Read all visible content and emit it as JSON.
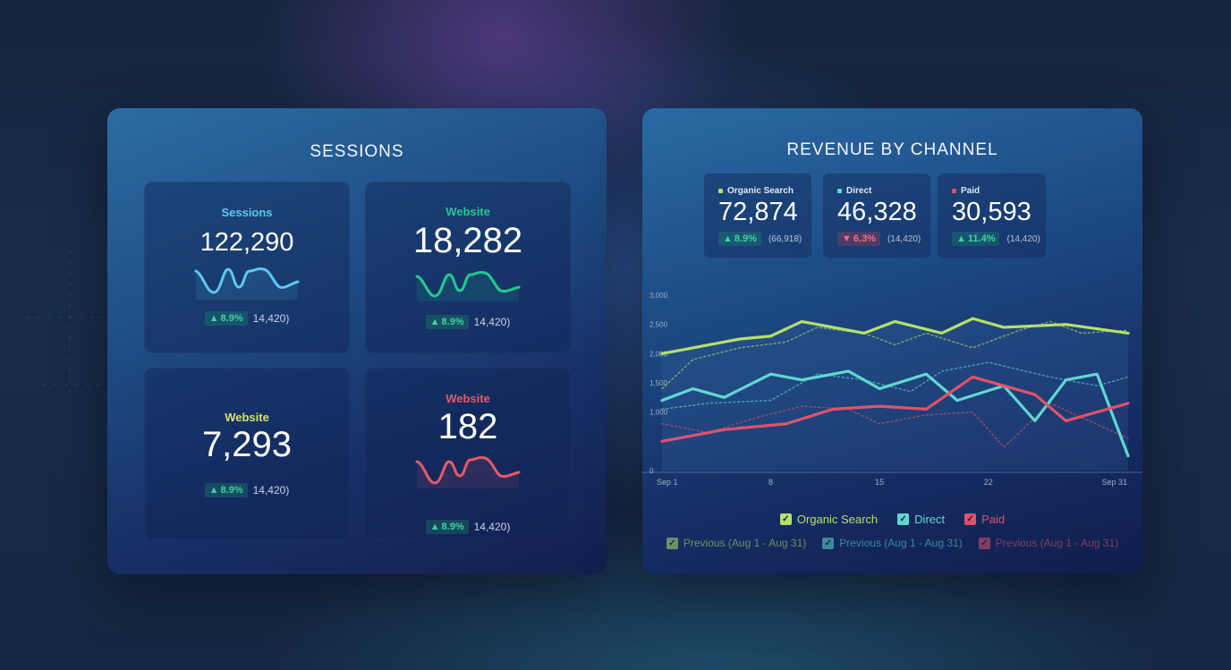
{
  "sessions_panel": {
    "title": "SESSIONS",
    "cards": [
      {
        "label": "Sessions",
        "value": "122,290",
        "delta": "8.9%",
        "direction": "up",
        "previous": "14,420)",
        "color": "#5ec8f0"
      },
      {
        "label": "Website",
        "value": "18,282",
        "delta": "8.9%",
        "direction": "up",
        "previous": "14,420)",
        "color": "#22c98f"
      },
      {
        "label": "Website",
        "value": "7,293",
        "delta": "8.9%",
        "direction": "up",
        "previous": "14,420)",
        "color": "#d6e36a"
      },
      {
        "label": "Website",
        "value": "182",
        "delta": "8.9%",
        "direction": "up",
        "previous": "14,420)",
        "color": "#e45a6a"
      }
    ]
  },
  "revenue_panel": {
    "title": "REVENUE BY CHANNEL",
    "kpis": [
      {
        "label": "Organic Search",
        "value": "72,874",
        "delta": "8.9%",
        "direction": "up",
        "previous": "(66,918)",
        "color": "#b6e06a"
      },
      {
        "label": "Direct",
        "value": "46,328",
        "delta": "6.3%",
        "direction": "down",
        "previous": "(14,420)",
        "color": "#5fd8d0"
      },
      {
        "label": "Paid",
        "value": "30,593",
        "delta": "11.4%",
        "direction": "up",
        "previous": "(14,420)",
        "color": "#e0526a"
      }
    ],
    "legend": [
      {
        "label": "Organic Search",
        "color": "#b6e06a"
      },
      {
        "label": "Direct",
        "color": "#5fd8d0"
      },
      {
        "label": "Paid",
        "color": "#e0526a"
      }
    ],
    "legend_previous": [
      {
        "label": "Previous (Aug 1 - Aug 31)",
        "color": "#b6e06a"
      },
      {
        "label": "Previous (Aug 1 - Aug 31)",
        "color": "#5fd8d0"
      },
      {
        "label": "Previous (Aug 1 - Aug 31)",
        "color": "#e0526a"
      }
    ]
  },
  "chart_data": {
    "type": "line",
    "title": "REVENUE BY CHANNEL",
    "xlabel": "",
    "ylabel": "",
    "ylim": [
      0,
      3000
    ],
    "yticks": [
      0,
      1000,
      1500,
      2000,
      2500,
      3000
    ],
    "ytick_labels": [
      "0",
      "1,000",
      "1,500",
      "2,000",
      "2,500",
      "3,000"
    ],
    "xlim": [
      1,
      31
    ],
    "xticks": [
      1,
      8,
      15,
      22,
      31
    ],
    "xtick_labels": [
      "Sep 1",
      "8",
      "15",
      "22",
      "Sep 31"
    ],
    "series": [
      {
        "name": "Organic Search",
        "color": "#b6e06a",
        "dashed": false,
        "x": [
          1,
          4,
          6,
          8,
          10,
          14,
          16,
          19,
          21,
          23,
          27,
          31
        ],
        "y": [
          2000,
          2150,
          2250,
          2300,
          2550,
          2350,
          2550,
          2350,
          2600,
          2450,
          2500,
          2350
        ]
      },
      {
        "name": "Direct",
        "color": "#5fd8d0",
        "dashed": false,
        "x": [
          1,
          3,
          5,
          8,
          10,
          13,
          15,
          18,
          20,
          23,
          25,
          27,
          29,
          31
        ],
        "y": [
          1200,
          1400,
          1250,
          1650,
          1550,
          1700,
          1400,
          1650,
          1200,
          1450,
          850,
          1550,
          1650,
          250
        ]
      },
      {
        "name": "Paid",
        "color": "#e0526a",
        "dashed": false,
        "x": [
          1,
          5,
          9,
          12,
          15,
          18,
          21,
          25,
          27,
          31
        ],
        "y": [
          500,
          700,
          800,
          1050,
          1100,
          1050,
          1600,
          1300,
          850,
          1150
        ]
      },
      {
        "name": "Organic Search (Previous)",
        "color": "#b6e06a",
        "dashed": true,
        "x": [
          1,
          3,
          6,
          9,
          11,
          14,
          16,
          18,
          21,
          24,
          26,
          28,
          31
        ],
        "y": [
          1400,
          1900,
          2100,
          2200,
          2450,
          2350,
          2150,
          2350,
          2100,
          2400,
          2550,
          2350,
          2400
        ]
      },
      {
        "name": "Direct (Previous)",
        "color": "#5fd8d0",
        "dashed": true,
        "x": [
          1,
          4,
          8,
          11,
          14,
          17,
          19,
          22,
          26,
          29,
          31
        ],
        "y": [
          1050,
          1150,
          1200,
          1650,
          1550,
          1350,
          1700,
          1850,
          1600,
          1450,
          1600
        ]
      },
      {
        "name": "Paid (Previous)",
        "color": "#e0526a",
        "dashed": true,
        "x": [
          1,
          4,
          7,
          10,
          13,
          15,
          18,
          21,
          23,
          26,
          31
        ],
        "y": [
          800,
          650,
          900,
          1100,
          1050,
          800,
          950,
          1000,
          400,
          1150,
          550
        ]
      }
    ]
  }
}
